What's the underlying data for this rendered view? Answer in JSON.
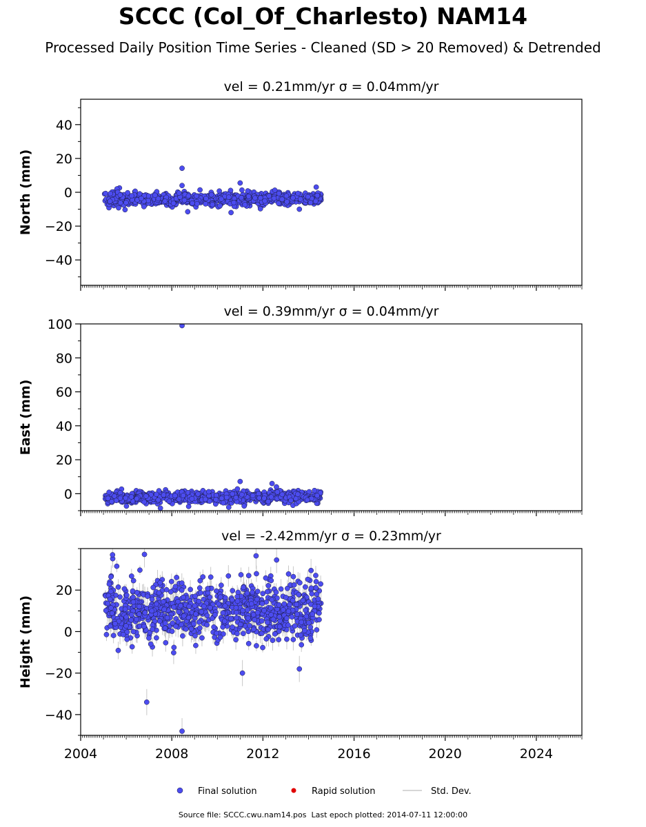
{
  "header": {
    "title": "SCCC (Col_Of_Charlesto) NAM14",
    "subtitle": "Processed Daily Position Time Series - Cleaned (SD > 20 Removed) & Detrended"
  },
  "footer": {
    "source_label": "Source file: SCCC.cwu.nam14.pos",
    "last_epoch_label": "Last epoch plotted: 2014-07-11 12:00:00"
  },
  "colors": {
    "final": "#4c4cf0",
    "final_edge": "#1a1a40",
    "rapid": "#e00000",
    "stddev": "#c8c8c8"
  },
  "legend": {
    "final_label": "Final solution",
    "rapid_label": "Rapid solution",
    "std_label": "Std. Dev."
  },
  "chart_data": [
    {
      "type": "scatter",
      "panel": "north",
      "title": "vel = 0.21mm/yr   σ = 0.04mm/yr",
      "ylabel": "North (mm)",
      "xlim": [
        2004,
        2026
      ],
      "ylim": [
        -55,
        55
      ],
      "yticks": [
        -40,
        -20,
        0,
        20,
        40
      ],
      "xticks": [
        2004,
        2008,
        2012,
        2016,
        2020,
        2024
      ],
      "show_xticklabels": false,
      "data_range": [
        2005.05,
        2014.55
      ],
      "baseline": -4,
      "noise": 1.8,
      "seed": 11,
      "outliers": [
        {
          "x": 2008.45,
          "y": 14.2
        },
        {
          "x": 2008.45,
          "y": 4.0
        },
        {
          "x": 2008.7,
          "y": -11.5
        },
        {
          "x": 2011.0,
          "y": 5.5
        },
        {
          "x": 2010.6,
          "y": -12.0
        },
        {
          "x": 2013.6,
          "y": -10.0
        }
      ]
    },
    {
      "type": "scatter",
      "panel": "east",
      "title": "vel = 0.39mm/yr   σ = 0.04mm/yr",
      "ylabel": "East (mm)",
      "xlim": [
        2004,
        2026
      ],
      "ylim": [
        -10,
        100
      ],
      "yticks": [
        0,
        20,
        40,
        60,
        80,
        100
      ],
      "xticks": [
        2004,
        2008,
        2012,
        2016,
        2020,
        2024
      ],
      "show_xticklabels": false,
      "data_range": [
        2005.05,
        2014.55
      ],
      "baseline": -2,
      "noise": 1.6,
      "seed": 23,
      "outliers": [
        {
          "x": 2008.45,
          "y": 99.0
        },
        {
          "x": 2011.0,
          "y": 7.2
        },
        {
          "x": 2012.4,
          "y": 6.0
        },
        {
          "x": 2007.5,
          "y": -8.5
        },
        {
          "x": 2010.5,
          "y": -8.0
        }
      ]
    },
    {
      "type": "scatter",
      "panel": "height",
      "title": "vel = -2.42mm/yr   σ = 0.23mm/yr",
      "ylabel": "Height (mm)",
      "xlim": [
        2004,
        2026
      ],
      "ylim": [
        -50,
        40
      ],
      "yticks": [
        -40,
        -20,
        0,
        20
      ],
      "xticks": [
        2004,
        2008,
        2012,
        2016,
        2020,
        2024
      ],
      "show_xticklabels": true,
      "data_range": [
        2005.05,
        2014.55
      ],
      "baseline": 10,
      "noise": 7,
      "seed": 37,
      "outliers": [
        {
          "x": 2006.9,
          "y": -34.0
        },
        {
          "x": 2008.45,
          "y": -48.0
        },
        {
          "x": 2005.4,
          "y": 37.0
        },
        {
          "x": 2006.8,
          "y": 37.2
        },
        {
          "x": 2011.7,
          "y": 36.5
        },
        {
          "x": 2012.6,
          "y": 34.5
        },
        {
          "x": 2013.6,
          "y": -18.0
        },
        {
          "x": 2011.1,
          "y": -20.0
        }
      ]
    }
  ]
}
